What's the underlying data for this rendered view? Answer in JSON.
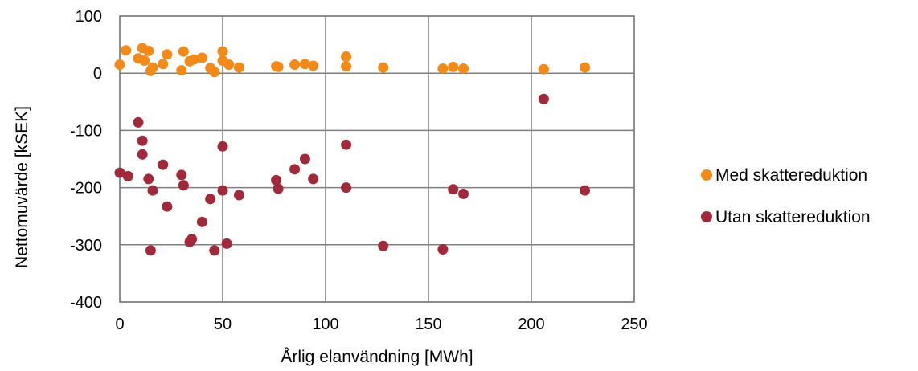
{
  "chart_data": {
    "type": "scatter",
    "xlabel": "Årlig elanvändning [MWh]",
    "ylabel": "Nettomuvärde [kSEK]",
    "xlim": [
      0,
      250
    ],
    "ylim": [
      -400,
      100
    ],
    "xticks": [
      0,
      50,
      100,
      150,
      200,
      250
    ],
    "yticks": [
      100,
      0,
      -100,
      -200,
      -300,
      -400
    ],
    "grid": true,
    "legend_position": "right",
    "series": [
      {
        "name": "Med skattereduktion",
        "color": "#f28a1a",
        "points": [
          [
            0,
            15
          ],
          [
            3,
            40
          ],
          [
            9,
            26
          ],
          [
            11,
            44
          ],
          [
            12,
            22
          ],
          [
            14,
            39
          ],
          [
            15,
            4
          ],
          [
            16,
            10
          ],
          [
            21,
            16
          ],
          [
            23,
            33
          ],
          [
            30,
            5
          ],
          [
            31,
            38
          ],
          [
            34,
            21
          ],
          [
            36,
            24
          ],
          [
            40,
            27
          ],
          [
            44,
            9
          ],
          [
            46,
            2
          ],
          [
            50,
            38
          ],
          [
            50,
            22
          ],
          [
            53,
            15
          ],
          [
            58,
            10
          ],
          [
            76,
            12
          ],
          [
            77,
            11
          ],
          [
            85,
            15
          ],
          [
            90,
            16
          ],
          [
            94,
            13
          ],
          [
            110,
            12
          ],
          [
            110,
            29
          ],
          [
            128,
            10
          ],
          [
            157,
            8
          ],
          [
            162,
            11
          ],
          [
            167,
            8
          ],
          [
            206,
            7
          ],
          [
            226,
            10
          ]
        ]
      },
      {
        "name": "Utan skattereduktion",
        "color": "#a0293a",
        "points": [
          [
            0,
            -174
          ],
          [
            4,
            -180
          ],
          [
            9,
            -86
          ],
          [
            11,
            -118
          ],
          [
            11,
            -142
          ],
          [
            14,
            -185
          ],
          [
            15,
            -310
          ],
          [
            16,
            -205
          ],
          [
            21,
            -160
          ],
          [
            23,
            -233
          ],
          [
            30,
            -178
          ],
          [
            31,
            -196
          ],
          [
            34,
            -295
          ],
          [
            35,
            -290
          ],
          [
            40,
            -260
          ],
          [
            44,
            -220
          ],
          [
            46,
            -310
          ],
          [
            50,
            -128
          ],
          [
            50,
            -205
          ],
          [
            52,
            -298
          ],
          [
            58,
            -213
          ],
          [
            76,
            -187
          ],
          [
            77,
            -202
          ],
          [
            85,
            -168
          ],
          [
            90,
            -150
          ],
          [
            94,
            -185
          ],
          [
            110,
            -200
          ],
          [
            110,
            -125
          ],
          [
            128,
            -302
          ],
          [
            157,
            -308
          ],
          [
            162,
            -203
          ],
          [
            167,
            -211
          ],
          [
            206,
            -45
          ],
          [
            226,
            -205
          ]
        ]
      }
    ]
  }
}
